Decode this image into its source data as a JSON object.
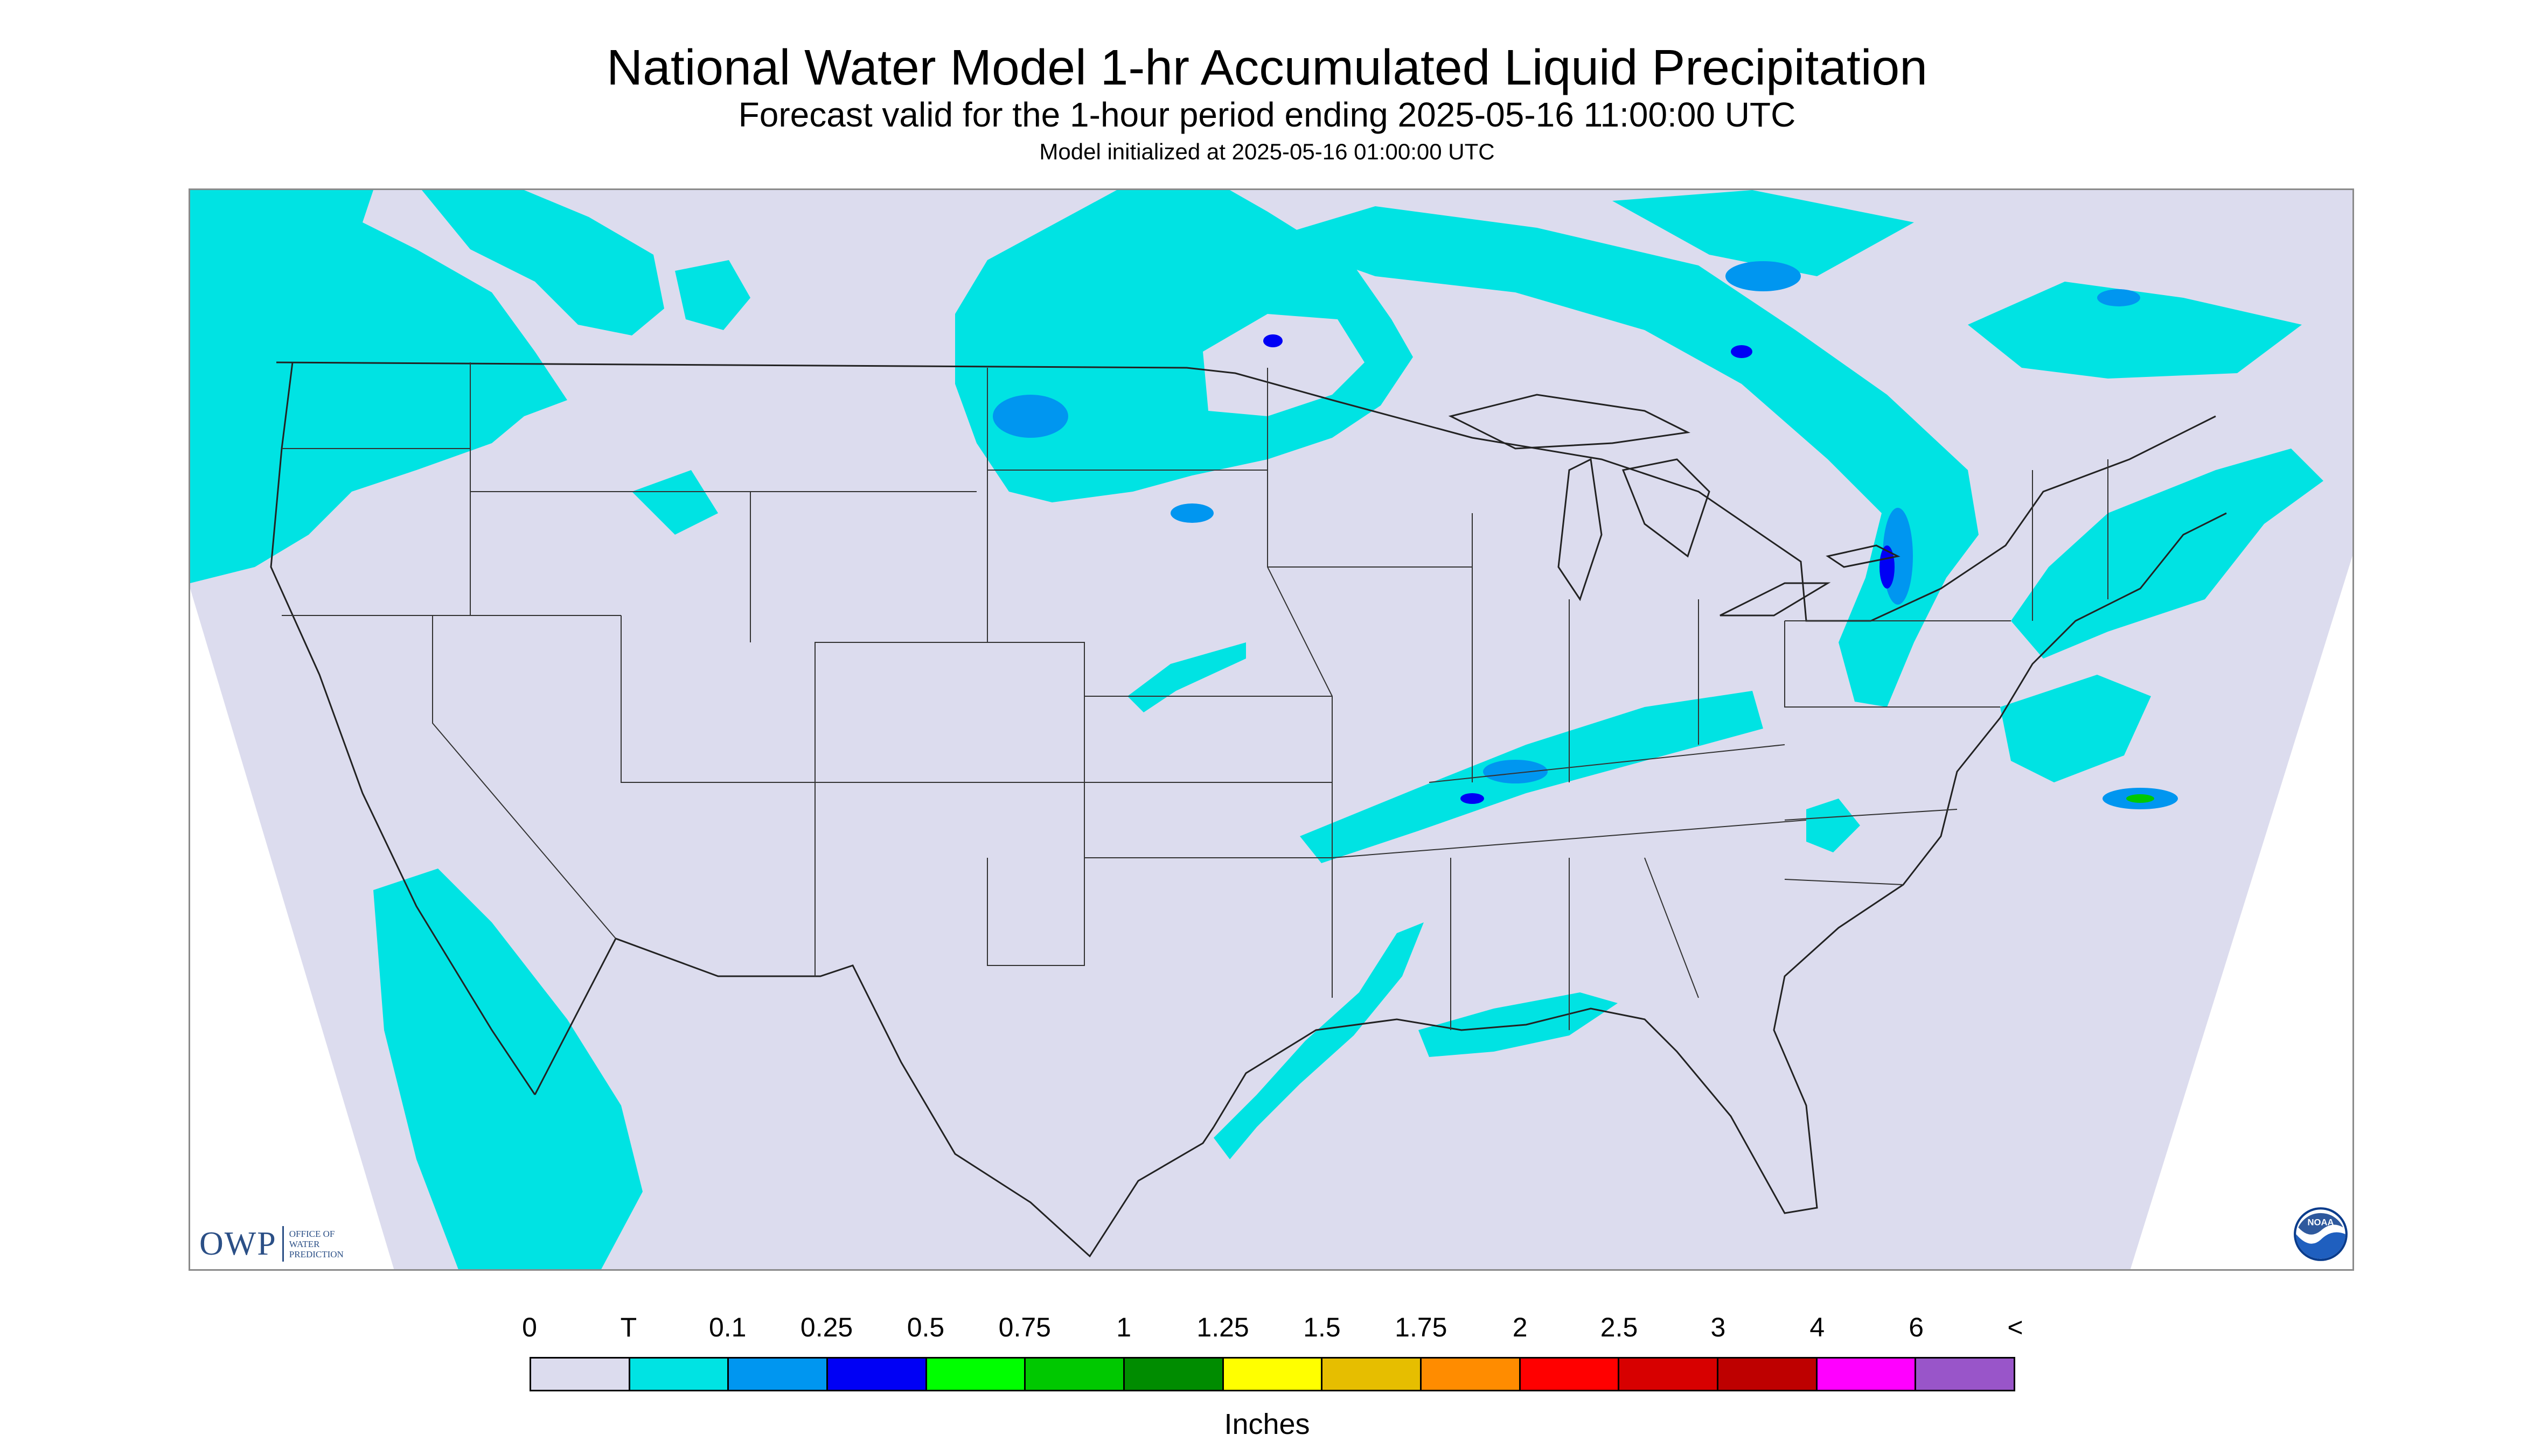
{
  "header": {
    "title": "National Water Model 1-hr Accumulated Liquid Precipitation",
    "subtitle": "Forecast valid for the 1-hour period ending 2025-05-16 11:00:00 UTC",
    "init_line": "Model initialized at 2025-05-16 01:00:00 UTC"
  },
  "colors": {
    "background": "#dcdcee",
    "trace": "#00e3e3",
    "borders": "#222222"
  },
  "logos": {
    "owp_mark": "OWP",
    "owp_line1": "OFFICE OF",
    "owp_line2": "WATER",
    "owp_line3": "PREDICTION",
    "noaa": "NOAA"
  },
  "legend": {
    "labels": [
      "0",
      "T",
      "0.1",
      "0.25",
      "0.5",
      "0.75",
      "1",
      "1.25",
      "1.5",
      "1.75",
      "2",
      "2.5",
      "3",
      "4",
      "6",
      "<"
    ],
    "colors": [
      "#dcdcee",
      "#00e3e3",
      "#0096f0",
      "#0000f5",
      "#00ff00",
      "#00c800",
      "#008c00",
      "#ffff00",
      "#e6be00",
      "#ff8c00",
      "#ff0000",
      "#d70000",
      "#be0000",
      "#ff00ff",
      "#9955c9"
    ],
    "units": "Inches"
  }
}
